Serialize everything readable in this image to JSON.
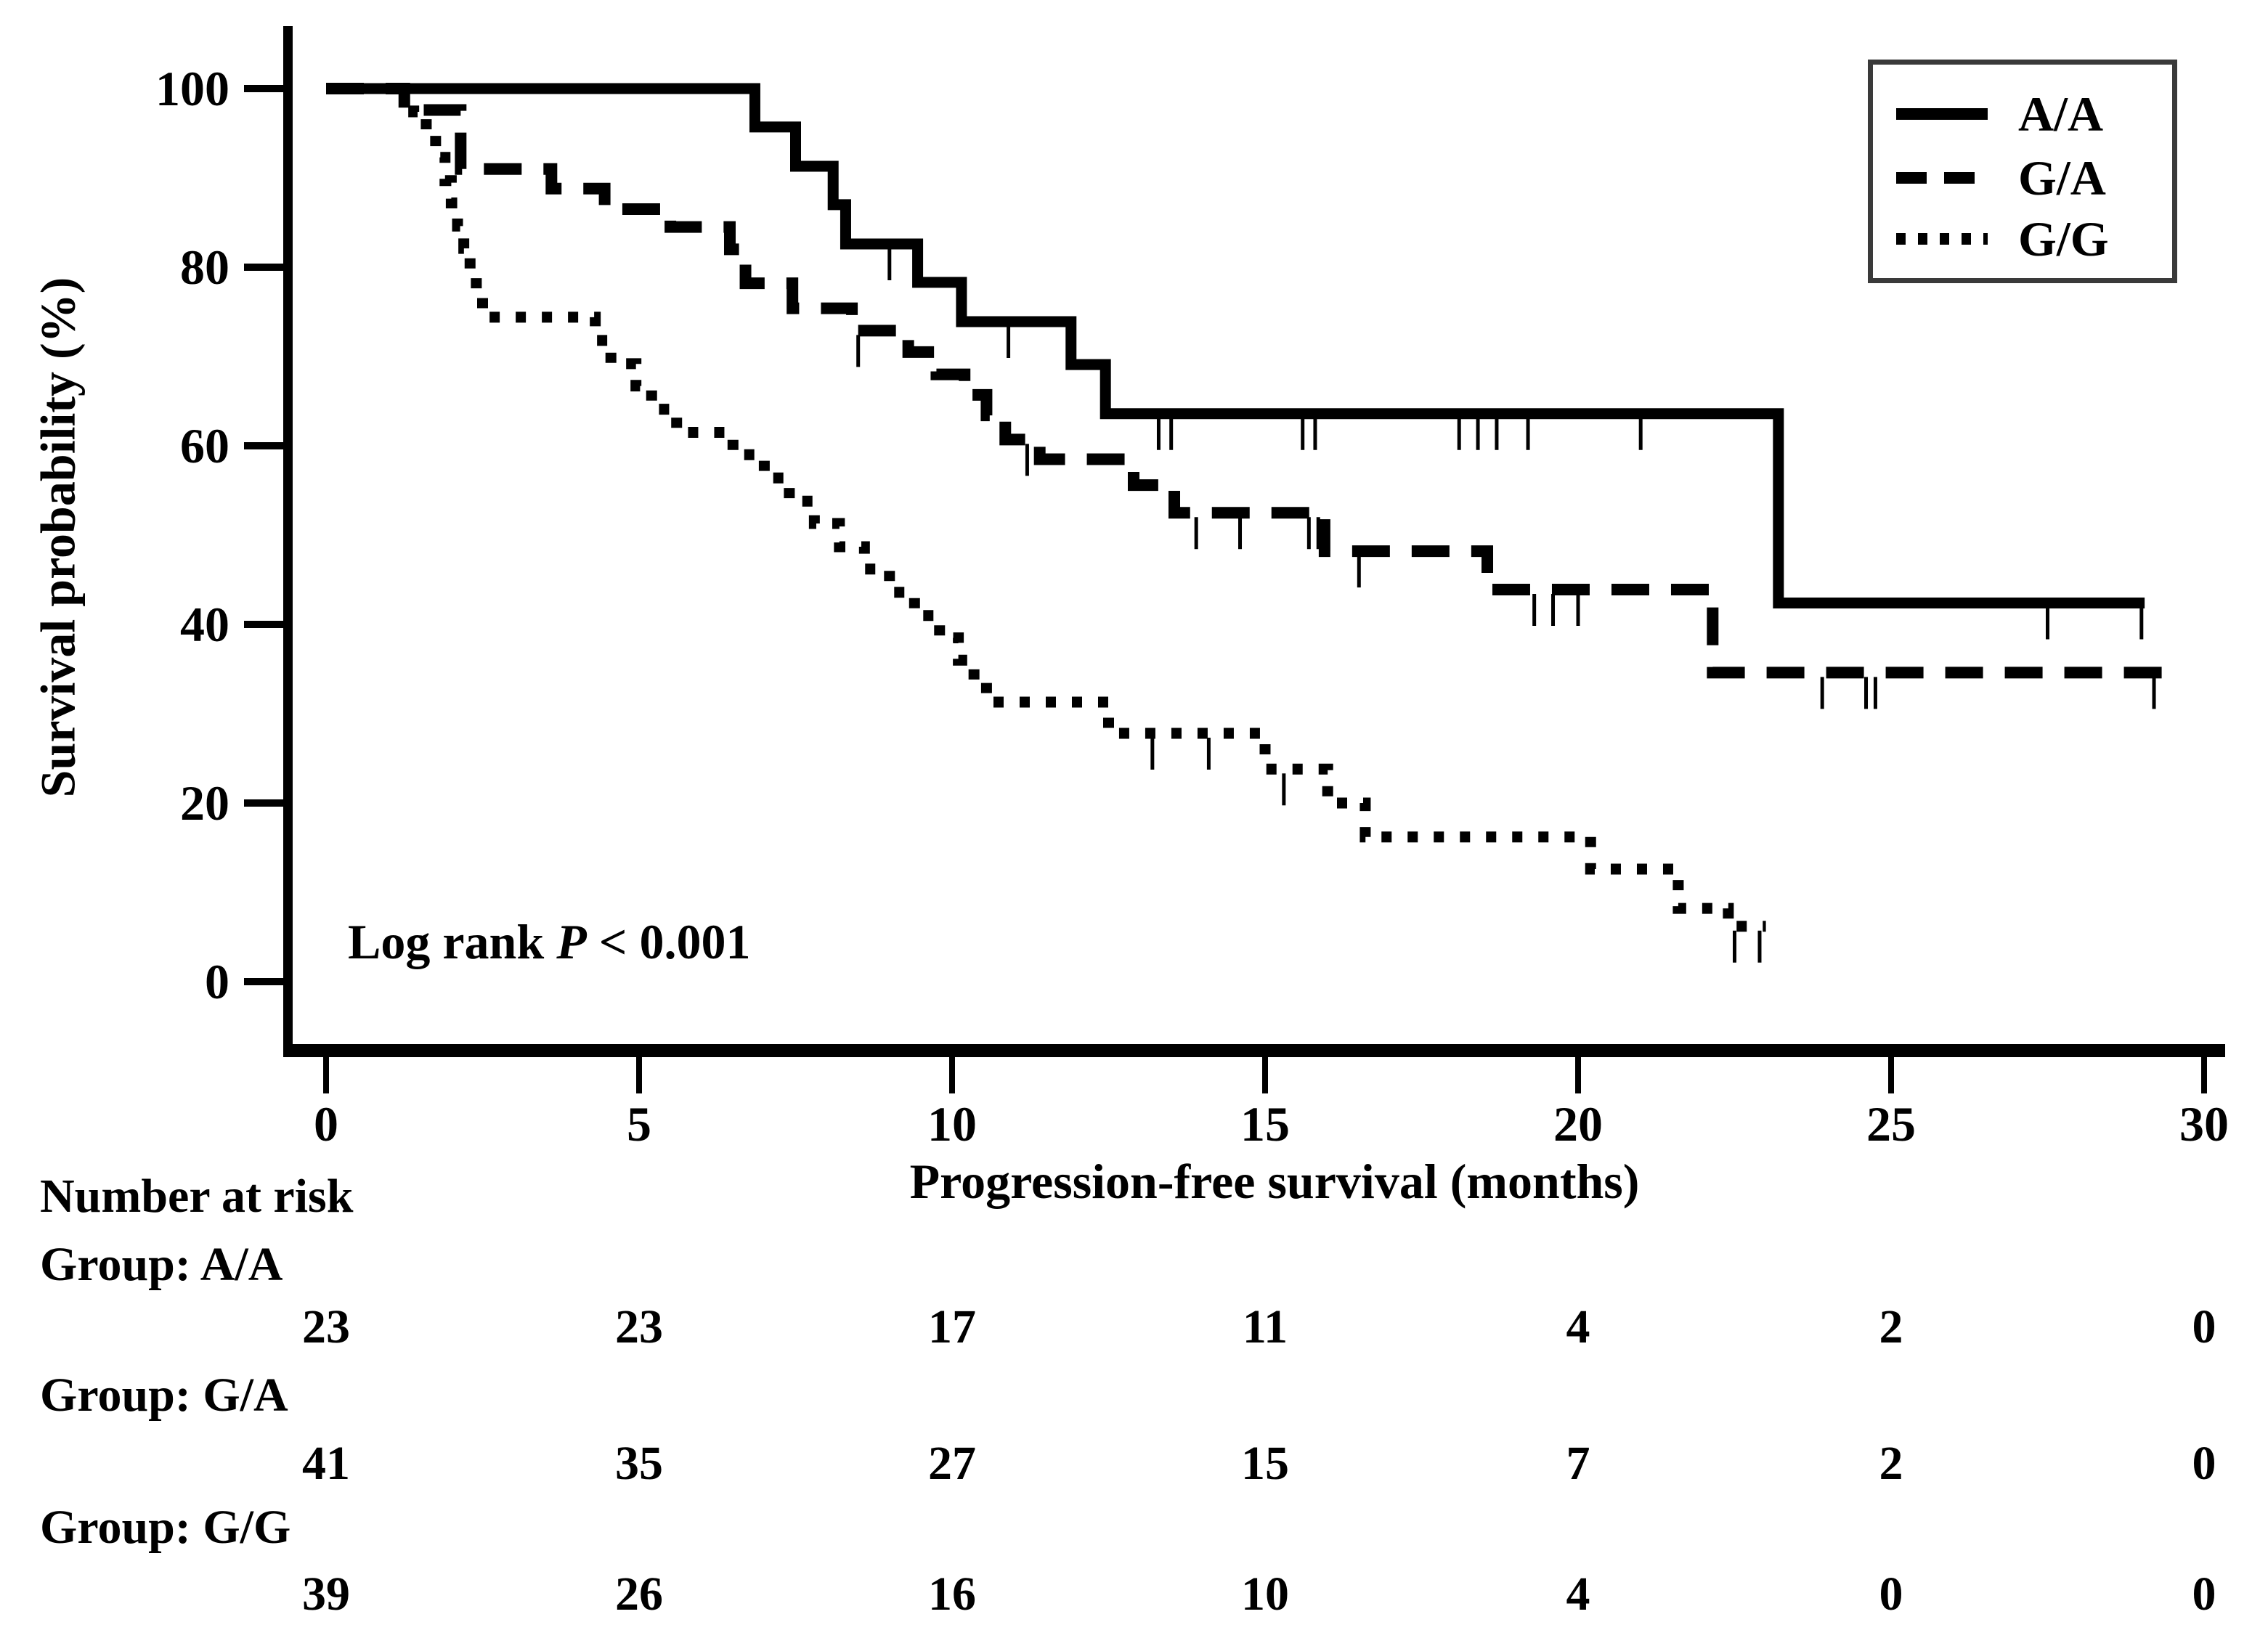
{
  "figure": {
    "background_color": "#ffffff",
    "ink_color": "#000000",
    "legend_border_color": "#3a3a3a"
  },
  "chart_data": {
    "type": "line",
    "subtype": "kaplan_meier_step",
    "title": "",
    "xlabel": "Progression-free survival (months)",
    "ylabel": "Survival probability (%)",
    "xlim": [
      0,
      30
    ],
    "ylim": [
      0,
      100
    ],
    "x_ticks": [
      0,
      5,
      10,
      15,
      20,
      25,
      30
    ],
    "y_ticks": [
      100,
      80,
      60,
      40,
      20,
      0
    ],
    "grid": false,
    "legend_position": "top-right",
    "annotation": {
      "prefix": "Log rank ",
      "p": "P",
      "suffix": " < 0.001"
    },
    "series": [
      {
        "name": "A/A",
        "line_style": "solid",
        "points": [
          [
            0,
            100
          ],
          [
            6.85,
            95.7
          ],
          [
            7.5,
            91.3
          ],
          [
            8.1,
            87.0
          ],
          [
            8.3,
            82.6
          ],
          [
            9.45,
            78.3
          ],
          [
            10.15,
            73.9
          ],
          [
            11.9,
            69.1
          ],
          [
            12.45,
            63.6
          ],
          [
            23.2,
            42.4
          ]
        ],
        "end_time": 29.05,
        "censor_times": [
          9.0,
          10.9,
          13.3,
          13.5,
          15.6,
          15.8,
          18.1,
          18.4,
          18.7,
          19.2,
          21.0,
          27.5,
          29.0
        ]
      },
      {
        "name": "G/A",
        "line_style": "dashed",
        "points": [
          [
            0,
            100
          ],
          [
            1.25,
            97.6
          ],
          [
            2.15,
            91.0
          ],
          [
            3.6,
            88.8
          ],
          [
            4.45,
            86.5
          ],
          [
            5.5,
            84.5
          ],
          [
            6.45,
            82.0
          ],
          [
            6.7,
            78.2
          ],
          [
            7.45,
            75.4
          ],
          [
            8.4,
            72.9
          ],
          [
            9.3,
            70.5
          ],
          [
            9.75,
            68.0
          ],
          [
            10.2,
            65.7
          ],
          [
            10.55,
            63.4
          ],
          [
            10.85,
            60.7
          ],
          [
            11.4,
            58.5
          ],
          [
            12.9,
            55.6
          ],
          [
            13.55,
            52.5
          ],
          [
            15.95,
            48.2
          ],
          [
            18.55,
            43.9
          ],
          [
            22.15,
            34.6
          ]
        ],
        "end_time": 29.35,
        "censor_times": [
          8.5,
          11.2,
          13.9,
          14.6,
          15.7,
          15.85,
          16.5,
          19.3,
          19.6,
          20.0,
          23.9,
          24.6,
          24.75,
          29.2
        ]
      },
      {
        "name": "G/G",
        "line_style": "dotted",
        "points": [
          [
            0,
            100
          ],
          [
            1.4,
            97.4
          ],
          [
            1.6,
            94.9
          ],
          [
            1.75,
            92.3
          ],
          [
            1.9,
            89.7
          ],
          [
            2.0,
            87.2
          ],
          [
            2.1,
            84.6
          ],
          [
            2.2,
            82.1
          ],
          [
            2.3,
            79.5
          ],
          [
            2.4,
            77.0
          ],
          [
            2.5,
            74.4
          ],
          [
            4.3,
            71.8
          ],
          [
            4.55,
            69.2
          ],
          [
            4.95,
            66.7
          ],
          [
            5.2,
            64.1
          ],
          [
            5.6,
            61.5
          ],
          [
            6.5,
            59.0
          ],
          [
            7.0,
            56.4
          ],
          [
            7.4,
            53.8
          ],
          [
            7.8,
            51.3
          ],
          [
            8.2,
            48.7
          ],
          [
            8.6,
            46.2
          ],
          [
            9.0,
            43.6
          ],
          [
            9.4,
            41.0
          ],
          [
            9.8,
            38.5
          ],
          [
            10.1,
            36.0
          ],
          [
            10.35,
            33.5
          ],
          [
            10.55,
            31.3
          ],
          [
            12.5,
            27.8
          ],
          [
            15.0,
            23.8
          ],
          [
            16.0,
            20.0
          ],
          [
            16.6,
            16.2
          ],
          [
            20.2,
            12.6
          ],
          [
            21.6,
            8.2
          ],
          [
            22.4,
            6.2
          ]
        ],
        "end_time": 23.0,
        "censor_times": [
          13.2,
          14.1,
          15.3,
          22.5,
          22.9
        ]
      }
    ]
  },
  "risk_table": {
    "heading": "Number at risk",
    "times": [
      0,
      5,
      10,
      15,
      20,
      25,
      30
    ],
    "rows": [
      {
        "label": "Group: A/A",
        "counts": [
          23,
          23,
          17,
          11,
          4,
          2,
          0
        ]
      },
      {
        "label": "Group: G/A",
        "counts": [
          41,
          35,
          27,
          15,
          7,
          2,
          0
        ]
      },
      {
        "label": "Group: G/G",
        "counts": [
          39,
          26,
          16,
          10,
          4,
          0,
          0
        ]
      }
    ]
  }
}
